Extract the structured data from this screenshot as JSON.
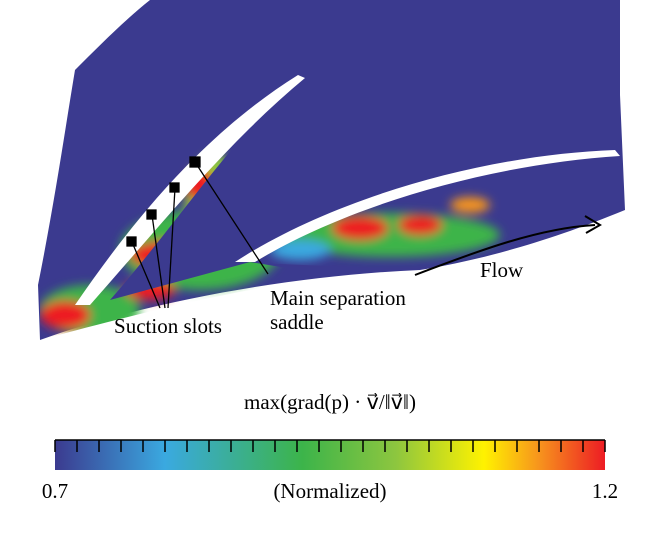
{
  "annotations": {
    "slots": "Suction slots",
    "saddle_line1": "Main separation",
    "saddle_line2": "saddle",
    "flow": "Flow"
  },
  "colorbar": {
    "title": "max(grad(p) · v⃗/‖v⃗‖)",
    "min": 0.7,
    "max": 1.2,
    "min_label": "0.7",
    "max_label": "1.2",
    "note": "(Normalized)",
    "ticks": [
      0.7,
      0.72,
      0.74,
      0.76,
      0.78,
      0.8,
      0.82,
      0.84,
      0.86,
      0.88,
      0.9,
      0.92,
      0.94,
      0.96,
      0.98,
      1.0,
      1.02,
      1.04,
      1.06,
      1.08,
      1.1,
      1.12,
      1.14,
      1.16,
      1.18,
      1.2
    ]
  }
}
